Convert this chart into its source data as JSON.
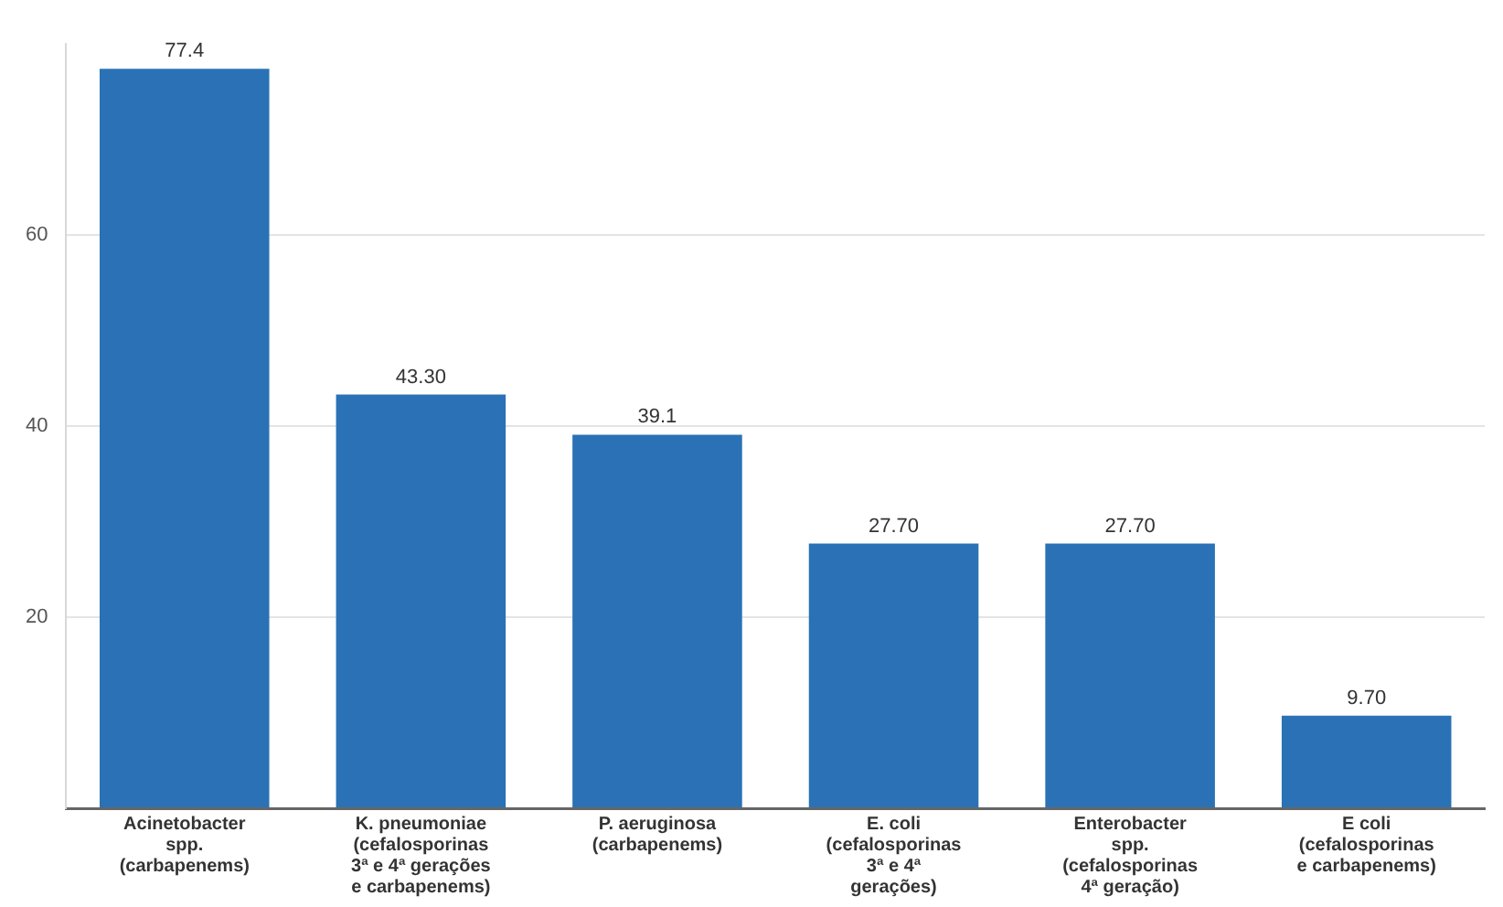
{
  "chart_data": {
    "type": "bar",
    "categories": [
      "Acinetobacter\nspp.\n(carbapenems)",
      "K. pneumoniae\n(cefalosporinas\n3ª e 4ª gerações\ne carbapenems)",
      "P. aeruginosa\n(carbapenems)",
      "E. coli\n(cefalosporinas\n3ª e 4ª\ngerações)",
      "Enterobacter\nspp.\n(cefalosporinas\n4ª geração)",
      "E coli\n(cefalosporinas\ne carbapenems)"
    ],
    "values": [
      77.4,
      43.3,
      39.1,
      27.7,
      27.7,
      9.7
    ],
    "value_labels": [
      "77.4",
      "43.30",
      "39.1",
      "27.70",
      "27.70",
      "9.70"
    ],
    "color": "#2a72b5",
    "ylim": [
      0,
      80
    ],
    "yticks": [
      {
        "value": 0,
        "label": null
      },
      20,
      40,
      60
    ],
    "grid": "y",
    "legend": false
  }
}
